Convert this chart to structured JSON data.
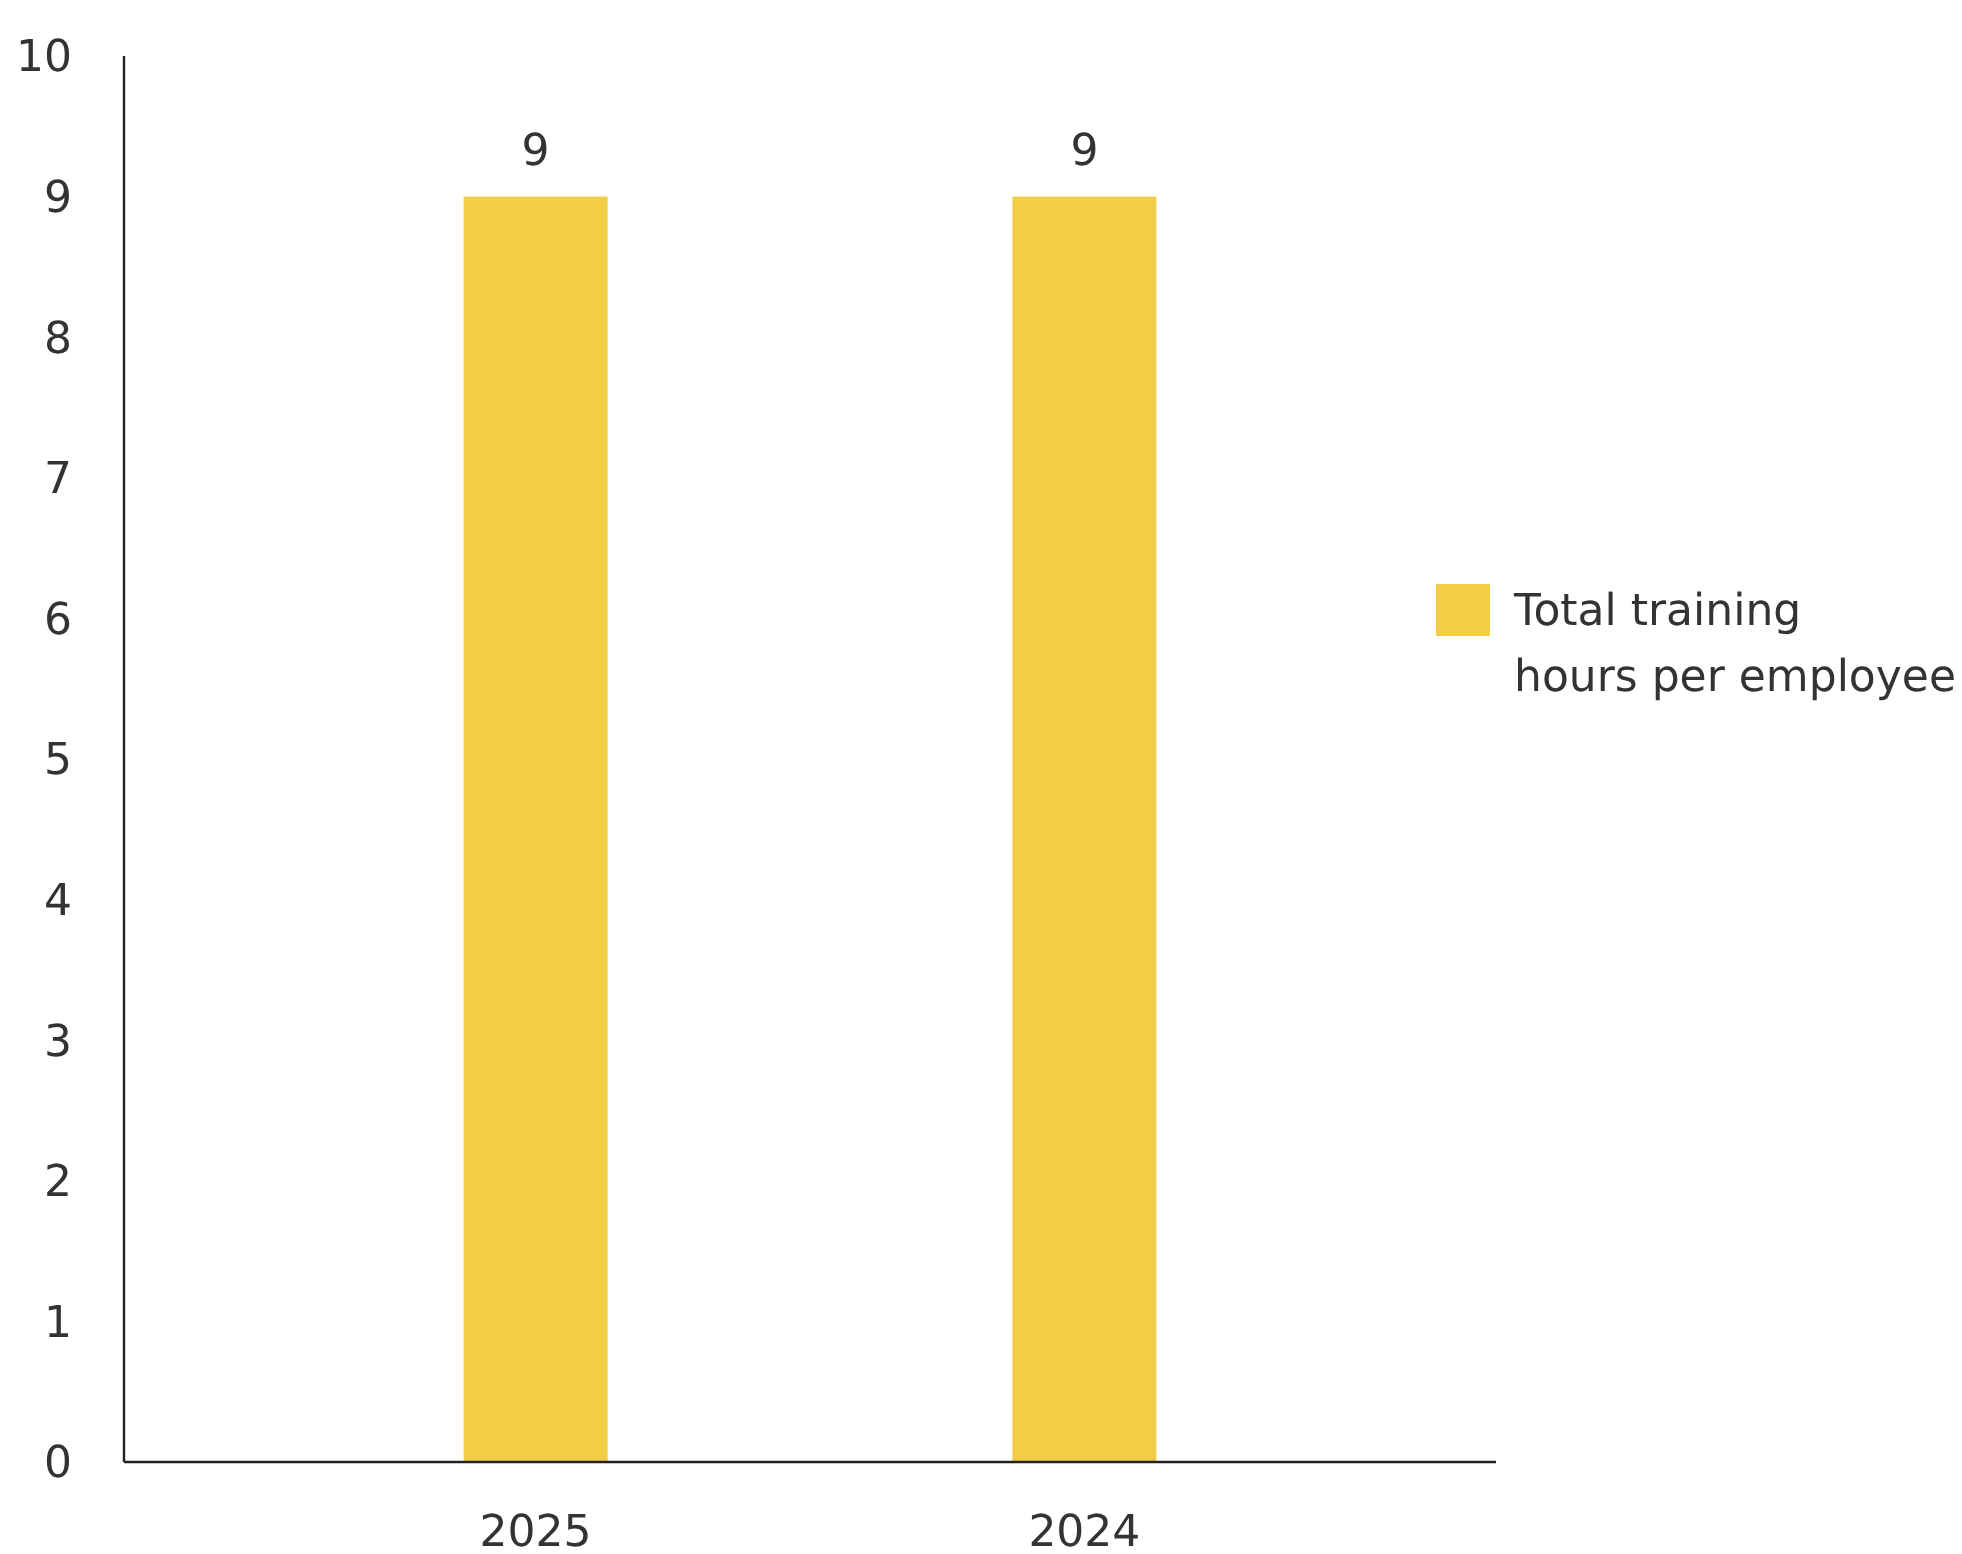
{
  "chart_data": {
    "type": "bar",
    "categories": [
      "2025",
      "2024"
    ],
    "series": [
      {
        "name": "Total training hours per employee",
        "color": "#f2ce46",
        "values": [
          9,
          9
        ]
      }
    ],
    "ylim": [
      0,
      10
    ],
    "yticks": [
      0,
      1,
      2,
      3,
      4,
      5,
      6,
      7,
      8,
      9,
      10
    ],
    "data_labels": true,
    "grid": false,
    "legend": "right"
  }
}
